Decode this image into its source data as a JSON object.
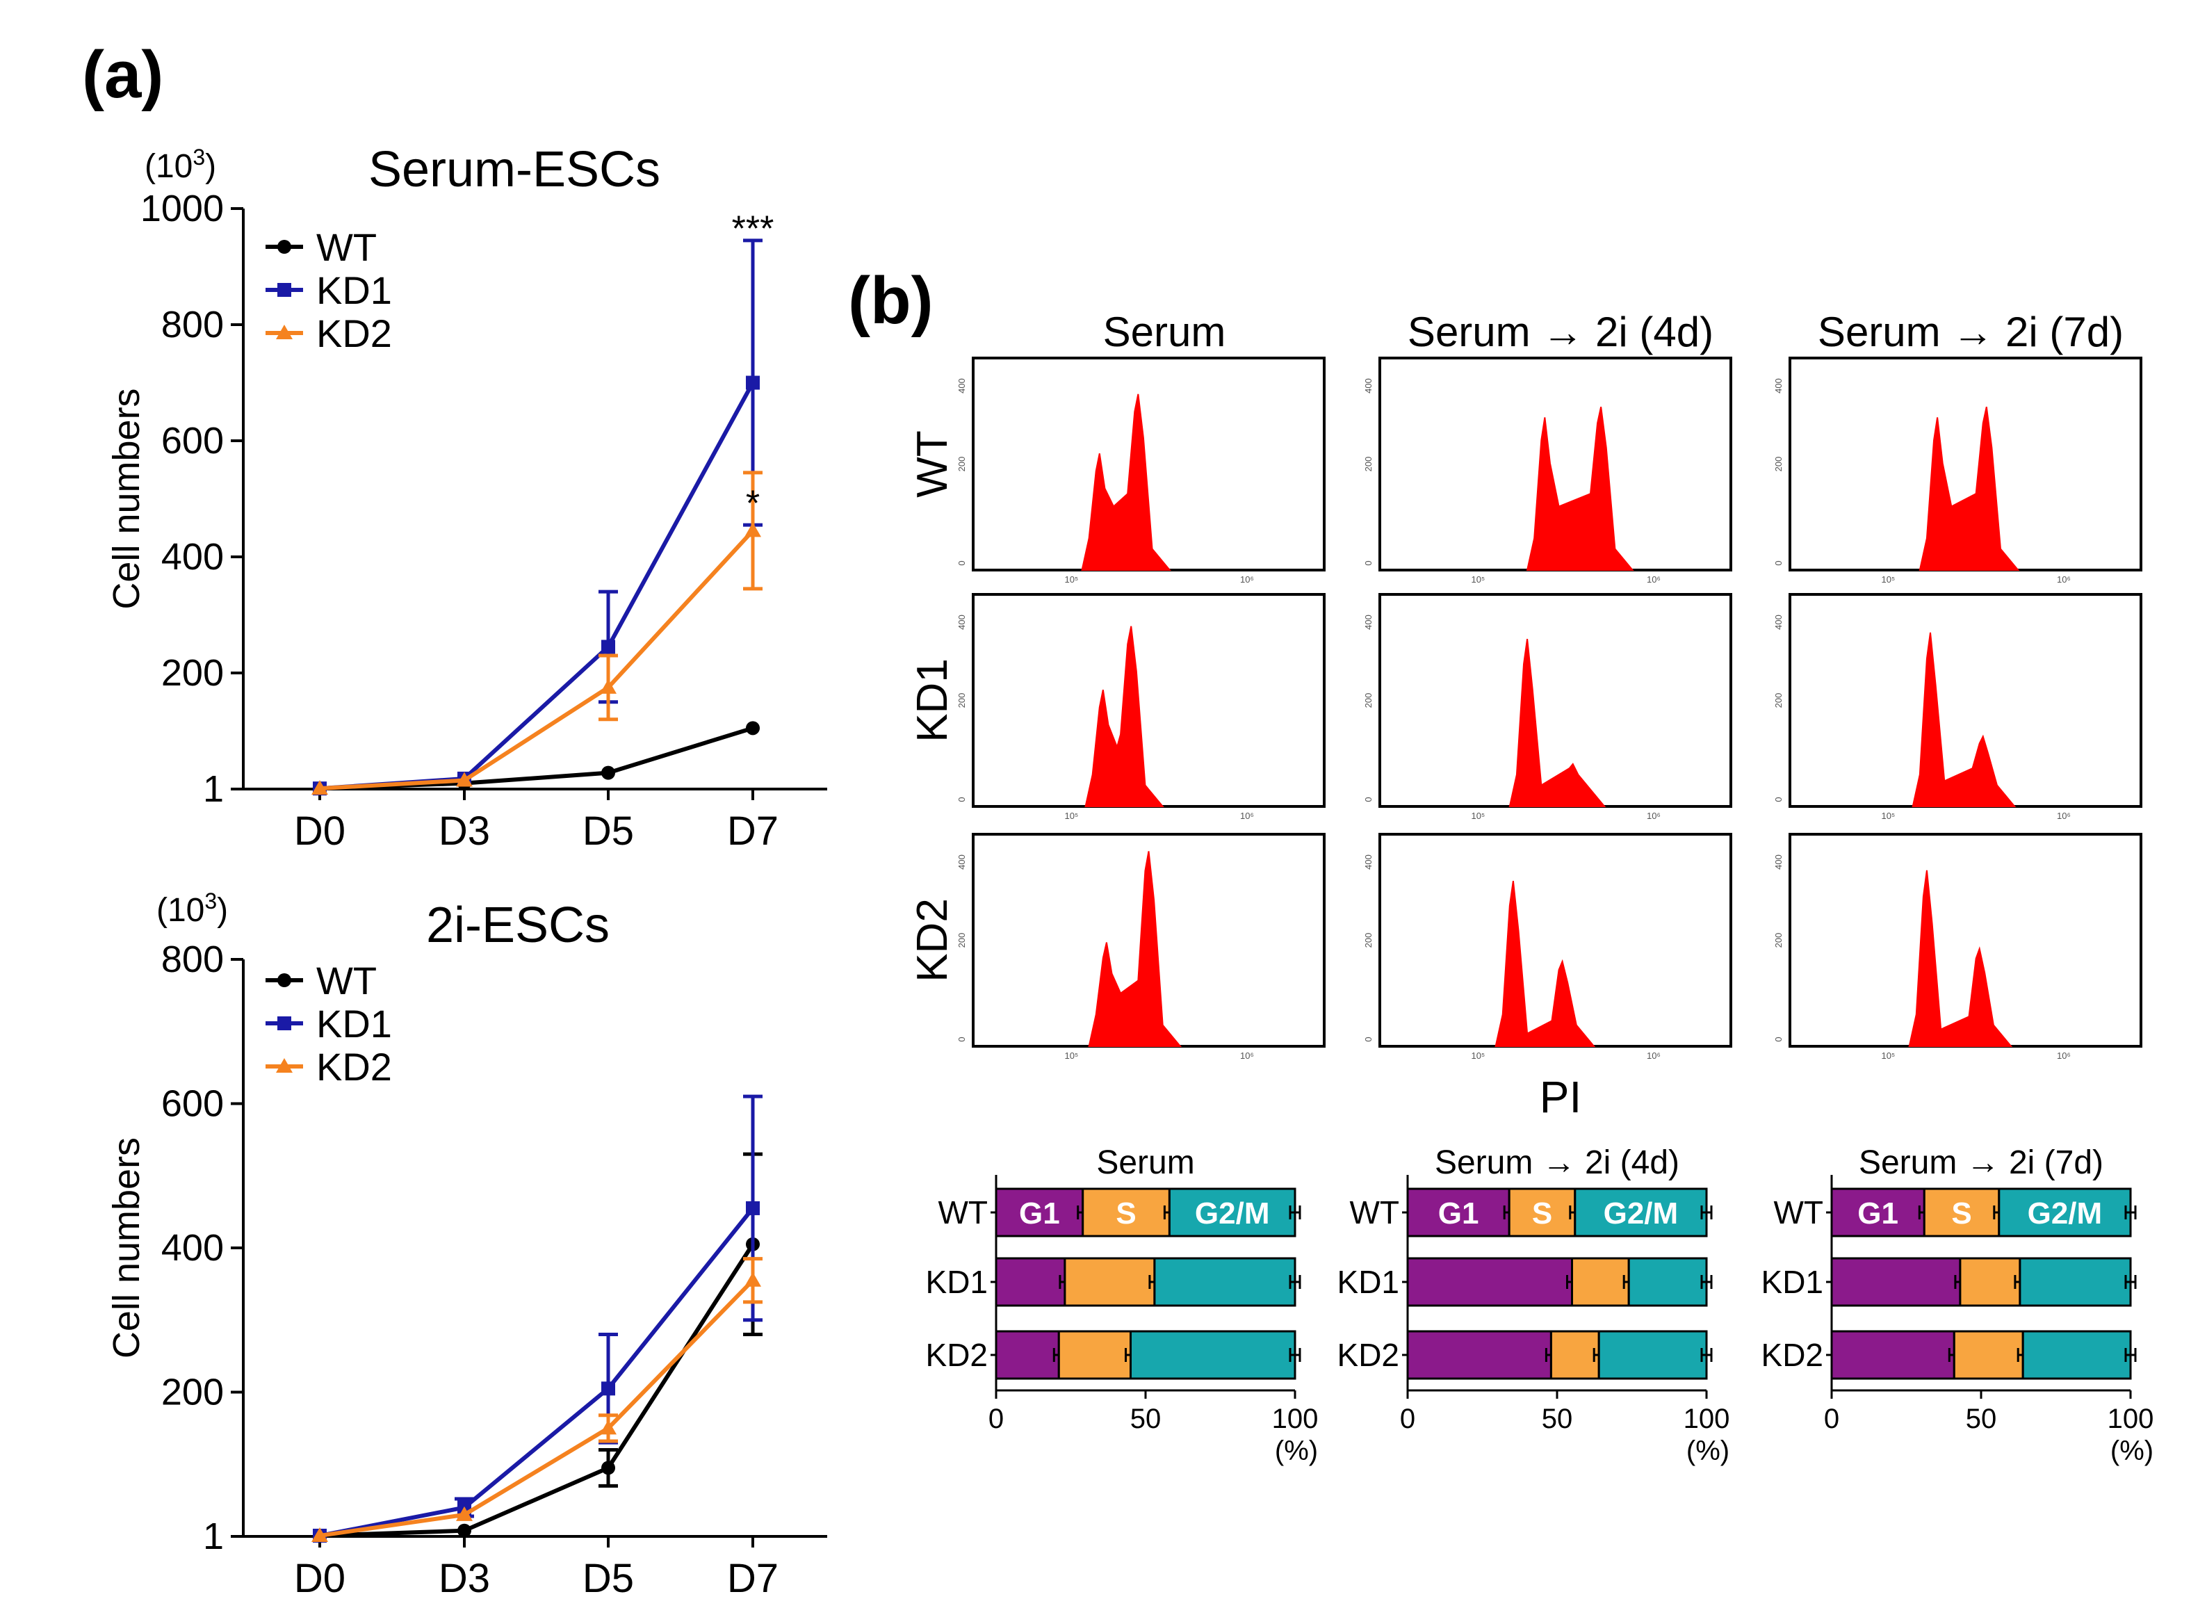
{
  "panel_labels": {
    "a": "(a)",
    "b": "(b)"
  },
  "colors": {
    "WT": "#000000",
    "KD1": "#1a1aa6",
    "KD2": "#f5821f",
    "hist_fill": "#ff0000",
    "G1": "#8b1a8b",
    "S": "#f8a540",
    "G2M": "#17a7ad"
  },
  "chart_data": [
    {
      "type": "line",
      "title": "Serum-ESCs",
      "xlabel": "",
      "ylabel": "Cell numbers",
      "y_unit_label": "(10",
      "y_unit_exp": "3",
      "y_unit_close": ")",
      "categories": [
        "D0",
        "D3",
        "D5",
        "D7"
      ],
      "ylim": [
        0,
        1000
      ],
      "yticks": [
        0,
        200,
        400,
        600,
        800,
        1000
      ],
      "ytick_labels": [
        "1",
        "200",
        "400",
        "600",
        "800",
        "1000"
      ],
      "legend_position": "top-left",
      "series": [
        {
          "name": "WT",
          "values": [
            1,
            10,
            28,
            105
          ],
          "errors": [
            0,
            0,
            0,
            0
          ]
        },
        {
          "name": "KD1",
          "values": [
            1,
            18,
            245,
            700
          ],
          "errors": [
            0,
            0,
            95,
            245
          ]
        },
        {
          "name": "KD2",
          "values": [
            1,
            15,
            175,
            445
          ],
          "errors": [
            0,
            0,
            55,
            100
          ]
        }
      ],
      "annotations": [
        {
          "category": "D7",
          "text": "***",
          "y": 968
        },
        {
          "category": "D7",
          "text": "*",
          "y": 495
        }
      ]
    },
    {
      "type": "line",
      "title": "2i-ESCs",
      "xlabel": "",
      "ylabel": "Cell numbers",
      "y_unit_label": "(10",
      "y_unit_exp": "3",
      "y_unit_close": ")",
      "categories": [
        "D0",
        "D3",
        "D5",
        "D7"
      ],
      "ylim": [
        0,
        800
      ],
      "yticks": [
        0,
        200,
        400,
        600,
        800
      ],
      "ytick_labels": [
        "1",
        "200",
        "400",
        "600",
        "800"
      ],
      "legend_position": "top-left",
      "series": [
        {
          "name": "WT",
          "values": [
            1,
            8,
            95,
            405
          ],
          "errors": [
            0,
            0,
            25,
            125
          ]
        },
        {
          "name": "KD1",
          "values": [
            1,
            40,
            205,
            455
          ],
          "errors": [
            0,
            12,
            75,
            155
          ]
        },
        {
          "name": "KD2",
          "values": [
            1,
            30,
            150,
            355
          ],
          "errors": [
            0,
            0,
            18,
            30
          ]
        }
      ],
      "annotations": []
    },
    {
      "type": "histogram",
      "columns": [
        "Serum",
        "Serum → 2i (4d)",
        "Serum → 2i (7d)"
      ],
      "rows": [
        "WT",
        "KD1",
        "KD2"
      ],
      "xlabel": "PI",
      "x_tick_labels": [
        "10⁵",
        "10⁶"
      ],
      "y_tick_labels": [
        "400",
        "200",
        "0"
      ]
    },
    {
      "type": "bar",
      "stacked": true,
      "orientation": "horizontal",
      "segment_names": [
        "G1",
        "S",
        "G2/M"
      ],
      "xticks": [
        0,
        50,
        100
      ],
      "xunit": "(%)",
      "panels": [
        {
          "title": "Serum",
          "rows": [
            {
              "name": "WT",
              "G1": 29,
              "S": 29,
              "G2M": 42
            },
            {
              "name": "KD1",
              "G1": 23,
              "S": 30,
              "G2M": 47
            },
            {
              "name": "KD2",
              "G1": 21,
              "S": 24,
              "G2M": 55
            }
          ]
        },
        {
          "title": "Serum → 2i (4d)",
          "rows": [
            {
              "name": "WT",
              "G1": 34,
              "S": 22,
              "G2M": 44
            },
            {
              "name": "KD1",
              "G1": 55,
              "S": 19,
              "G2M": 26
            },
            {
              "name": "KD2",
              "G1": 48,
              "S": 16,
              "G2M": 36
            }
          ]
        },
        {
          "title": "Serum → 2i (7d)",
          "rows": [
            {
              "name": "WT",
              "G1": 31,
              "S": 25,
              "G2M": 44
            },
            {
              "name": "KD1",
              "G1": 43,
              "S": 20,
              "G2M": 37
            },
            {
              "name": "KD2",
              "G1": 41,
              "S": 23,
              "G2M": 36
            }
          ]
        }
      ]
    }
  ]
}
